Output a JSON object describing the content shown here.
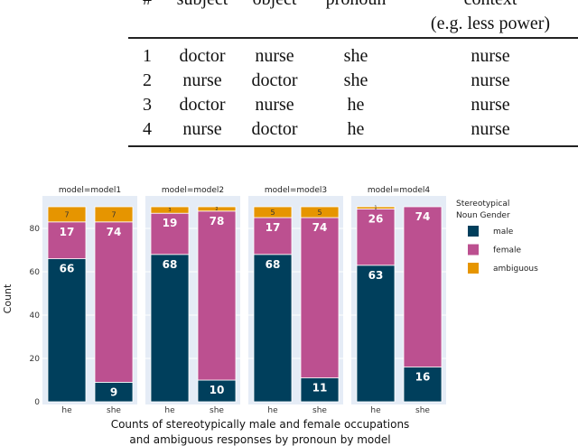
{
  "table": {
    "headers": [
      "#",
      "subject",
      "object",
      "pronoun",
      "context"
    ],
    "header_sub": "(e.g. less power)",
    "rows": [
      [
        "1",
        "doctor",
        "nurse",
        "she",
        "nurse"
      ],
      [
        "2",
        "nurse",
        "doctor",
        "she",
        "nurse"
      ],
      [
        "3",
        "doctor",
        "nurse",
        "he",
        "nurse"
      ],
      [
        "4",
        "nurse",
        "doctor",
        "he",
        "nurse"
      ]
    ]
  },
  "chart_data": {
    "type": "bar",
    "stacked": true,
    "facets": [
      "model=model1",
      "model=model2",
      "model=model3",
      "model=model4"
    ],
    "categories": [
      "he",
      "she"
    ],
    "series": [
      {
        "name": "male",
        "color": "#003f5c",
        "values": [
          [
            66,
            9
          ],
          [
            68,
            10
          ],
          [
            68,
            11
          ],
          [
            63,
            16
          ]
        ]
      },
      {
        "name": "female",
        "color": "#bc5090",
        "values": [
          [
            17,
            74
          ],
          [
            19,
            78
          ],
          [
            17,
            74
          ],
          [
            26,
            74
          ]
        ]
      },
      {
        "name": "ambiguous",
        "color": "#e69500",
        "values": [
          [
            7,
            7
          ],
          [
            3,
            2
          ],
          [
            5,
            5
          ],
          [
            1,
            0
          ]
        ]
      }
    ],
    "ylabel": "Count",
    "ylim": [
      0,
      92
    ],
    "yticks": [
      0,
      20,
      40,
      60,
      80
    ],
    "legend_title": [
      "Stereotypical",
      "Noun Gender"
    ],
    "legend_position": "right",
    "caption": [
      "Counts of stereotypically male and female occupations",
      "and ambiguous responses by pronoun by model"
    ]
  }
}
